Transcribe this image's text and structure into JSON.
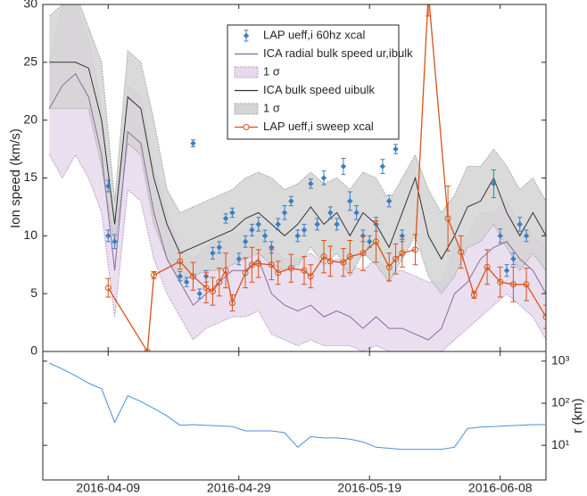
{
  "chart_data": [
    {
      "type": "line",
      "ylabel": "Ion speed (km/s)",
      "ylim": [
        0,
        30
      ],
      "yticks": [
        0,
        5,
        10,
        15,
        20,
        25,
        30
      ],
      "series": [
        {
          "name": "LAP ueff,i 60hz xcal",
          "type": "errorbar",
          "color": "#3a7fc1",
          "x": [
            "2016-04-09",
            "2016-04-09",
            "2016-04-10",
            "2016-04-20",
            "2016-04-21",
            "2016-04-22",
            "2016-04-23",
            "2016-04-24",
            "2016-04-25",
            "2016-04-26",
            "2016-04-27",
            "2016-04-28",
            "2016-04-29",
            "2016-04-30",
            "2016-05-01",
            "2016-05-02",
            "2016-05-03",
            "2016-05-04",
            "2016-05-05",
            "2016-05-06",
            "2016-05-07",
            "2016-05-08",
            "2016-05-09",
            "2016-05-10",
            "2016-05-11",
            "2016-05-12",
            "2016-05-13",
            "2016-05-14",
            "2016-05-15",
            "2016-05-16",
            "2016-05-17",
            "2016-05-18",
            "2016-05-19",
            "2016-05-20",
            "2016-05-21",
            "2016-05-22",
            "2016-05-23",
            "2016-05-24",
            "2016-06-07",
            "2016-06-08",
            "2016-06-09",
            "2016-06-10",
            "2016-06-11",
            "2016-06-12"
          ],
          "values": [
            14.3,
            10,
            9.5,
            6.5,
            6,
            18,
            5,
            6.5,
            8.5,
            9,
            11.5,
            12,
            8,
            9.5,
            10.5,
            11,
            10,
            9,
            11,
            12,
            13,
            10,
            10.5,
            14.5,
            11,
            15,
            12,
            11,
            16,
            13,
            12,
            10,
            9.5,
            11,
            16,
            13,
            17.5,
            10,
            14.5,
            10,
            7,
            8,
            11,
            10
          ],
          "errors": [
            0.5,
            0.5,
            0.6,
            0.4,
            0.4,
            0.3,
            0.4,
            0.5,
            0.5,
            0.5,
            0.4,
            0.4,
            0.5,
            0.5,
            0.5,
            0.6,
            0.5,
            0.5,
            0.5,
            0.6,
            0.4,
            0.5,
            0.5,
            0.4,
            0.5,
            0.6,
            0.5,
            0.5,
            0.7,
            0.8,
            0.6,
            0.5,
            0.5,
            0.6,
            0.6,
            0.5,
            0.4,
            0.5,
            1.2,
            0.6,
            0.5,
            0.5,
            0.6,
            0.5
          ]
        },
        {
          "name": "ICA radial bulk speed ur,ibulk",
          "type": "line",
          "color": "#8a6a9e",
          "x": [
            "2016-03-31",
            "2016-04-02",
            "2016-04-04",
            "2016-04-06",
            "2016-04-08",
            "2016-04-10",
            "2016-04-12",
            "2016-04-14",
            "2016-04-16",
            "2016-04-18",
            "2016-04-20",
            "2016-04-22",
            "2016-04-24",
            "2016-04-26",
            "2016-04-28",
            "2016-04-30",
            "2016-05-02",
            "2016-05-04",
            "2016-05-06",
            "2016-05-08",
            "2016-05-10",
            "2016-05-12",
            "2016-05-14",
            "2016-05-16",
            "2016-05-18",
            "2016-05-20",
            "2016-05-22",
            "2016-05-24",
            "2016-05-26",
            "2016-05-28",
            "2016-05-30",
            "2016-06-01",
            "2016-06-03",
            "2016-06-05",
            "2016-06-07",
            "2016-06-09",
            "2016-06-11",
            "2016-06-13",
            "2016-06-15"
          ],
          "values": [
            21,
            23,
            24,
            22,
            17,
            7,
            19,
            18,
            12,
            8,
            6,
            4,
            5,
            6,
            7,
            7,
            8,
            5,
            4,
            3.5,
            4,
            3,
            3.5,
            3,
            2,
            3,
            2,
            2,
            1.5,
            1,
            2,
            5,
            6,
            8,
            9,
            9.5,
            8,
            7,
            5
          ]
        },
        {
          "name": "1 σ",
          "type": "band",
          "color": "#e6d9ec",
          "edge": "#a98dba",
          "band_of": 1,
          "values": [
            25,
            30,
            30,
            27,
            21,
            10,
            23,
            22,
            16,
            12,
            9,
            8,
            9,
            10,
            10,
            10.5,
            11,
            9,
            8,
            8,
            8.5,
            7.5,
            8,
            7.5,
            7,
            8,
            7,
            7,
            6.5,
            6,
            6,
            9,
            10,
            12,
            12,
            13,
            11,
            10,
            9
          ],
          "lower": [
            17,
            15,
            17,
            15,
            12,
            3,
            14,
            13,
            8,
            5,
            3,
            1,
            2,
            2.5,
            3,
            3,
            3.5,
            1.5,
            1,
            0.5,
            1,
            0.5,
            0.5,
            0.5,
            0,
            0.5,
            0,
            0,
            0,
            0,
            0,
            1,
            2,
            3,
            4,
            5,
            4,
            3,
            1
          ]
        },
        {
          "name": "ICA bulk speed uibulk",
          "type": "line",
          "color": "#333333",
          "x": [
            "2016-03-31",
            "2016-04-02",
            "2016-04-04",
            "2016-04-06",
            "2016-04-08",
            "2016-04-10",
            "2016-04-12",
            "2016-04-14",
            "2016-04-16",
            "2016-04-18",
            "2016-04-20",
            "2016-04-22",
            "2016-04-24",
            "2016-04-26",
            "2016-04-28",
            "2016-04-30",
            "2016-05-02",
            "2016-05-04",
            "2016-05-06",
            "2016-05-08",
            "2016-05-10",
            "2016-05-12",
            "2016-05-14",
            "2016-05-16",
            "2016-05-18",
            "2016-05-20",
            "2016-05-22",
            "2016-05-24",
            "2016-05-26",
            "2016-05-28",
            "2016-05-30",
            "2016-06-01",
            "2016-06-03",
            "2016-06-05",
            "2016-06-07",
            "2016-06-09",
            "2016-06-11",
            "2016-06-13",
            "2016-06-15"
          ],
          "values": [
            25,
            25,
            25,
            24.5,
            20,
            11,
            22,
            21,
            15,
            11,
            8.5,
            9,
            9.5,
            10,
            10.5,
            11.5,
            12,
            11,
            10,
            11,
            12.5,
            11,
            12,
            10,
            12,
            11,
            9,
            12,
            15,
            10,
            8,
            10,
            12.5,
            13,
            15,
            12,
            10,
            12,
            10
          ]
        },
        {
          "name": "1 σ",
          "type": "band",
          "color": "#d4d4d4",
          "edge": "#9a9a9a",
          "band_of": 3,
          "values": [
            29,
            30,
            31,
            28,
            25,
            13,
            26,
            25,
            20,
            14,
            12,
            12.5,
            13,
            13.5,
            14,
            15,
            15.5,
            15,
            14,
            14.5,
            15.5,
            14.5,
            15,
            14,
            15.5,
            15,
            13,
            15,
            17,
            14,
            12,
            13.5,
            16,
            16,
            17.5,
            16,
            14,
            15,
            13
          ],
          "lower": [
            21,
            21,
            21,
            21,
            16,
            9,
            18,
            17,
            11,
            8,
            6,
            6.5,
            7,
            7,
            7.5,
            8,
            8.5,
            7.5,
            7,
            7.5,
            9,
            7.5,
            8.5,
            6.5,
            8.5,
            7.5,
            6,
            8,
            10,
            6.5,
            5,
            6.5,
            9,
            9.5,
            11,
            9,
            7,
            8.5,
            7
          ]
        },
        {
          "name": "LAP ueff,i sweep xcal",
          "type": "errorbar_line",
          "color": "#d95319",
          "x": [
            "2016-04-09",
            "2016-04-15",
            "2016-04-16",
            "2016-04-20",
            "2016-04-22",
            "2016-04-24",
            "2016-04-25",
            "2016-04-26",
            "2016-04-27",
            "2016-04-28",
            "2016-04-30",
            "2016-05-01",
            "2016-05-02",
            "2016-05-04",
            "2016-05-05",
            "2016-05-07",
            "2016-05-09",
            "2016-05-10",
            "2016-05-12",
            "2016-05-13",
            "2016-05-15",
            "2016-05-16",
            "2016-05-18",
            "2016-05-20",
            "2016-05-22",
            "2016-05-23",
            "2016-05-24",
            "2016-05-26",
            "2016-05-28",
            "2016-05-31",
            "2016-06-02",
            "2016-06-04",
            "2016-06-06",
            "2016-06-08",
            "2016-06-10",
            "2016-06-12",
            "2016-06-15"
          ],
          "values": [
            5.5,
            0,
            6.6,
            7.8,
            6.5,
            5.5,
            5.2,
            6,
            7,
            4.2,
            6.8,
            7.5,
            7.6,
            7.5,
            6.8,
            7.2,
            7,
            6.5,
            8.2,
            7.8,
            7.7,
            8.2,
            8.5,
            9.5,
            7.3,
            8,
            8.5,
            8.8,
            31,
            11.5,
            8.6,
            4.9,
            7.3,
            6,
            5.8,
            5.8,
            3
          ],
          "errors": [
            0.8,
            0,
            0.3,
            0.7,
            1.2,
            1.3,
            1.2,
            1.2,
            1.5,
            0.7,
            1.3,
            1.5,
            1.2,
            1.3,
            1.0,
            1.2,
            1.2,
            1.0,
            1.4,
            1.3,
            1.2,
            1.4,
            1.5,
            1.8,
            1.2,
            1.3,
            1.2,
            1.3,
            2,
            2.8,
            1.4,
            0.3,
            1.5,
            1.3,
            1.5,
            1.4,
            1
          ]
        }
      ]
    },
    {
      "type": "line",
      "log": true,
      "y2label": "r (km)",
      "y2lim": [
        1.5,
        1700
      ],
      "y2ticks": [
        {
          "value": 10,
          "label": "10¹"
        },
        {
          "value": 100,
          "label": "10²"
        },
        {
          "value": 1000,
          "label": "10³"
        }
      ],
      "xlim": [
        "2016-03-30",
        "2016-06-15"
      ],
      "xticks": [
        "2016-04-09",
        "2016-04-29",
        "2016-05-19",
        "2016-06-08"
      ],
      "series": [
        {
          "axis": "y2",
          "color": "#4a90d9",
          "x": [
            "2016-03-31",
            "2016-04-02",
            "2016-04-04",
            "2016-04-06",
            "2016-04-08",
            "2016-04-10",
            "2016-04-12",
            "2016-04-14",
            "2016-04-16",
            "2016-04-18",
            "2016-04-20",
            "2016-04-22",
            "2016-04-24",
            "2016-04-26",
            "2016-04-28",
            "2016-04-30",
            "2016-05-02",
            "2016-05-04",
            "2016-05-06",
            "2016-05-08",
            "2016-05-10",
            "2016-05-12",
            "2016-05-14",
            "2016-05-16",
            "2016-05-18",
            "2016-05-20",
            "2016-05-22",
            "2016-05-24",
            "2016-05-26",
            "2016-05-28",
            "2016-05-30",
            "2016-06-01",
            "2016-06-03",
            "2016-06-05",
            "2016-06-07",
            "2016-06-09",
            "2016-06-11",
            "2016-06-13",
            "2016-06-15"
          ],
          "values": [
            900,
            650,
            450,
            300,
            220,
            35,
            150,
            110,
            75,
            50,
            30,
            31,
            30,
            29,
            28,
            22,
            22,
            22,
            20,
            9,
            16,
            15,
            15,
            14,
            12,
            9,
            8.5,
            8,
            8,
            8,
            8,
            9,
            25,
            27,
            28,
            29,
            30,
            31,
            31
          ]
        }
      ]
    }
  ]
}
